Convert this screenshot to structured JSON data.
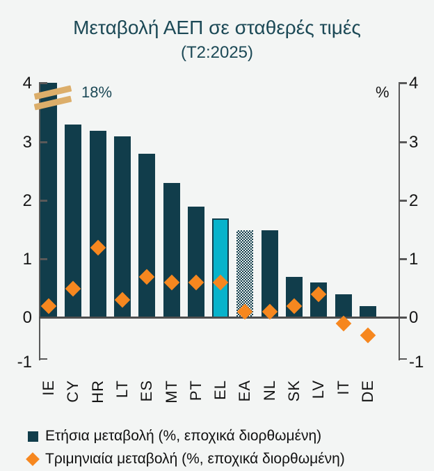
{
  "chart_data": {
    "type": "bar",
    "title": "Μεταβολή ΑΕΠ σε σταθερές τιμές",
    "subtitle": "(Τ2:2025)",
    "unit_label": "%",
    "categories": [
      "IE",
      "CY",
      "HR",
      "LT",
      "ES",
      "MT",
      "PT",
      "EL",
      "EA",
      "NL",
      "SK",
      "LV",
      "IT",
      "DE"
    ],
    "series": [
      {
        "name": "Ετήσια μεταβολή (%, εποχικά διορθωμένη)",
        "type": "bar",
        "color": "#113d4b",
        "values": [
          18,
          3.3,
          3.2,
          3.1,
          2.8,
          2.3,
          1.9,
          1.7,
          1.5,
          1.5,
          0.7,
          0.6,
          0.4,
          0.2
        ]
      },
      {
        "name": "Τριμηνιαία μεταβολή (%, εποχικά διορθωμένη)",
        "type": "scatter",
        "marker": "diamond",
        "color": "#f6871f",
        "values": [
          0.2,
          0.5,
          1.2,
          0.3,
          0.7,
          0.6,
          0.6,
          0.6,
          0.1,
          0.1,
          0.2,
          0.4,
          -0.1,
          -0.3
        ]
      }
    ],
    "ylim": [
      -1,
      4
    ],
    "yticks": [
      4,
      3,
      2,
      1,
      0,
      -1
    ],
    "grid": false,
    "legend_position": "bottom",
    "truncated_bar": {
      "category": "IE",
      "annotation": "18%",
      "cap": 4
    },
    "highlighted_bar": {
      "category": "EL",
      "fill": "#08b3cb"
    },
    "hatched_bar": {
      "category": "EA"
    },
    "colors": {
      "bar": "#113d4b",
      "marker": "#f6871f",
      "highlight_fill": "#08b3cb",
      "break_marks": "#dcae6a",
      "title_text": "#1c4956",
      "axis": "#595959",
      "background": "#f3f5f4"
    }
  }
}
